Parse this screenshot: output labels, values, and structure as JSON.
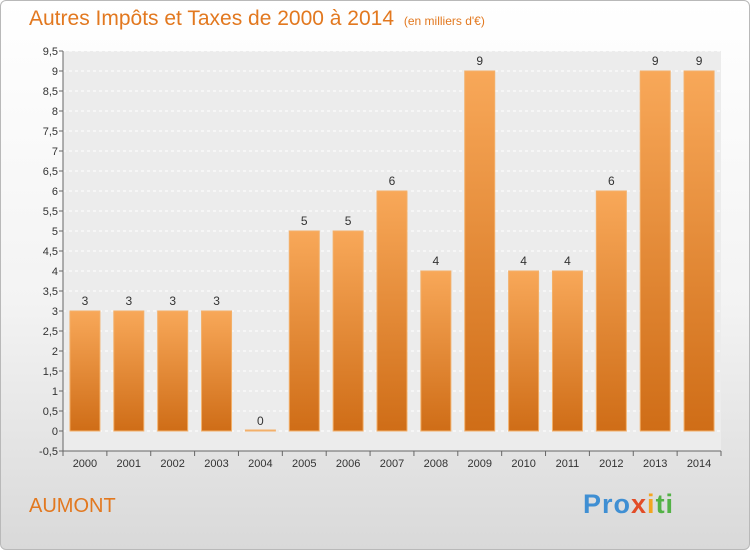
{
  "chart_data": {
    "type": "bar",
    "title": "Autres Impôts et Taxes de 2000 à 2014",
    "subtitle": "(en milliers d'€)",
    "categories": [
      "2000",
      "2001",
      "2002",
      "2003",
      "2004",
      "2005",
      "2006",
      "2007",
      "2008",
      "2009",
      "2010",
      "2011",
      "2012",
      "2013",
      "2014"
    ],
    "values": [
      3,
      3,
      3,
      3,
      0,
      5,
      5,
      6,
      4,
      9,
      4,
      4,
      6,
      9,
      9
    ],
    "data_labels": [
      "3",
      "3",
      "3",
      "3",
      "0",
      "5",
      "5",
      "6",
      "4",
      "9",
      "4",
      "4",
      "6",
      "9",
      "9"
    ],
    "ylim": [
      -0.5,
      9.5
    ],
    "yticks": [
      "-0,5",
      "0",
      "0,5",
      "1",
      "1,5",
      "2",
      "2,5",
      "3",
      "3,5",
      "4",
      "4,5",
      "5",
      "5,5",
      "6",
      "6,5",
      "7",
      "7,5",
      "8",
      "8,5",
      "9",
      "9,5"
    ],
    "grid": true,
    "bar_color": "#f0922e"
  },
  "place": "AUMONT",
  "logo": {
    "part1": "Pro",
    "part2": "x",
    "part3": "i",
    "part4": "ti"
  }
}
